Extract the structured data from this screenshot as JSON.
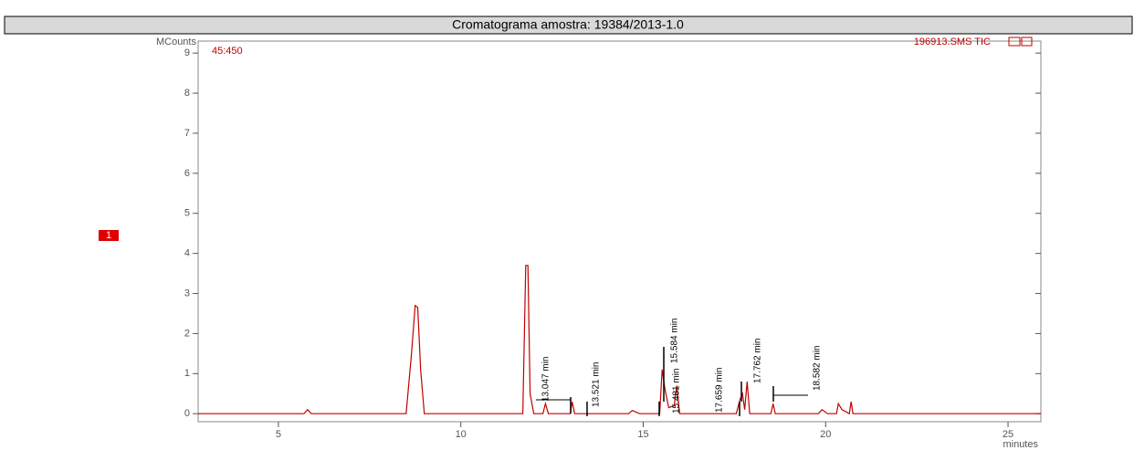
{
  "header": {
    "title": "Cromatograma amostra: 19384/2013-1.0"
  },
  "chart_data": {
    "type": "line",
    "y_label": "MCounts",
    "x_label": "minutes",
    "annotations": [
      "45:450",
      "1",
      "13.047 min",
      "13.521 min",
      "15.584 min",
      "15.481 min",
      "17.659 min",
      "17.762 min",
      "18.582 min"
    ],
    "x": [
      2.8,
      5.7,
      5.8,
      5.9,
      8.5,
      8.65,
      8.75,
      8.82,
      8.9,
      9.0,
      11.7,
      11.78,
      11.84,
      11.9,
      12.0,
      12.25,
      12.32,
      12.4,
      13.0,
      13.05,
      13.12,
      14.6,
      14.7,
      14.9,
      15.45,
      15.52,
      15.6,
      15.7,
      15.85,
      15.92,
      16.0,
      17.55,
      17.65,
      17.72,
      17.78,
      17.85,
      17.92,
      18.5,
      18.56,
      18.62,
      19.8,
      19.9,
      20.05,
      20.3,
      20.35,
      20.45,
      20.65,
      20.7,
      20.75,
      25.9
    ],
    "series": [
      {
        "name": "196913.SMS TIC",
        "color": "#c00000",
        "values": [
          0,
          0,
          0.1,
          0,
          0,
          1.5,
          2.7,
          2.65,
          1.1,
          0,
          0,
          3.7,
          3.7,
          0.5,
          0,
          0,
          0.25,
          0,
          0,
          0.3,
          0,
          0,
          0.08,
          0,
          0,
          1.1,
          0.6,
          0.15,
          0.2,
          0.7,
          0,
          0,
          0.35,
          0.5,
          0.1,
          0.8,
          0,
          0,
          0.25,
          0,
          0,
          0.1,
          0,
          0,
          0.25,
          0.1,
          0,
          0.3,
          0,
          0
        ]
      }
    ],
    "xlim": [
      2.8,
      25.9
    ],
    "ylim": [
      -0.2,
      9.3
    ],
    "xticks": [
      5,
      10,
      15,
      20,
      25
    ],
    "yticks": [
      0,
      1,
      2,
      3,
      4,
      5,
      6,
      7,
      8,
      9
    ]
  }
}
